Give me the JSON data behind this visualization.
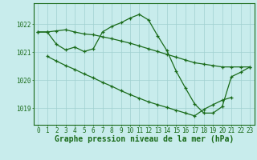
{
  "bg_color": "#c8ecec",
  "line_color": "#1a6b1a",
  "grid_color": "#a0d0d0",
  "xlabel": "Graphe pression niveau de la mer (hPa)",
  "xlabel_fontsize": 7.0,
  "tick_fontsize": 5.5,
  "ylim": [
    1018.4,
    1022.75
  ],
  "yticks": [
    1019,
    1020,
    1021,
    1022
  ],
  "hours": [
    0,
    1,
    2,
    3,
    4,
    5,
    6,
    7,
    8,
    9,
    10,
    11,
    12,
    13,
    14,
    15,
    16,
    17,
    18,
    19,
    20,
    21,
    22,
    23
  ],
  "line1": [
    1021.72,
    1021.72,
    1021.76,
    1021.8,
    1021.72,
    1021.65,
    1021.62,
    1021.55,
    1021.48,
    1021.4,
    1021.32,
    1021.22,
    1021.12,
    1021.02,
    1020.92,
    1020.82,
    1020.72,
    1020.62,
    1020.57,
    1020.52,
    1020.47,
    1020.47,
    1020.47,
    1020.47
  ],
  "line2": [
    1021.72,
    1021.72,
    1021.28,
    1021.08,
    1021.18,
    1021.02,
    1021.12,
    1021.72,
    1021.92,
    1022.05,
    1022.22,
    1022.35,
    1022.15,
    1021.58,
    1021.05,
    1020.32,
    1019.72,
    1019.15,
    1018.82,
    1018.82,
    1019.05,
    1020.12,
    1020.28,
    1020.47
  ],
  "line3_x": [
    1,
    2,
    3,
    4,
    5,
    6,
    7,
    8,
    9,
    10,
    11,
    12,
    13,
    14,
    15,
    16,
    17,
    18,
    19,
    20,
    21
  ],
  "line3": [
    1020.85,
    1020.68,
    1020.52,
    1020.38,
    1020.22,
    1020.08,
    1019.92,
    1019.78,
    1019.62,
    1019.48,
    1019.35,
    1019.22,
    1019.12,
    1019.02,
    1018.92,
    1018.82,
    1018.72,
    1018.95,
    1019.12,
    1019.28,
    1019.38
  ]
}
